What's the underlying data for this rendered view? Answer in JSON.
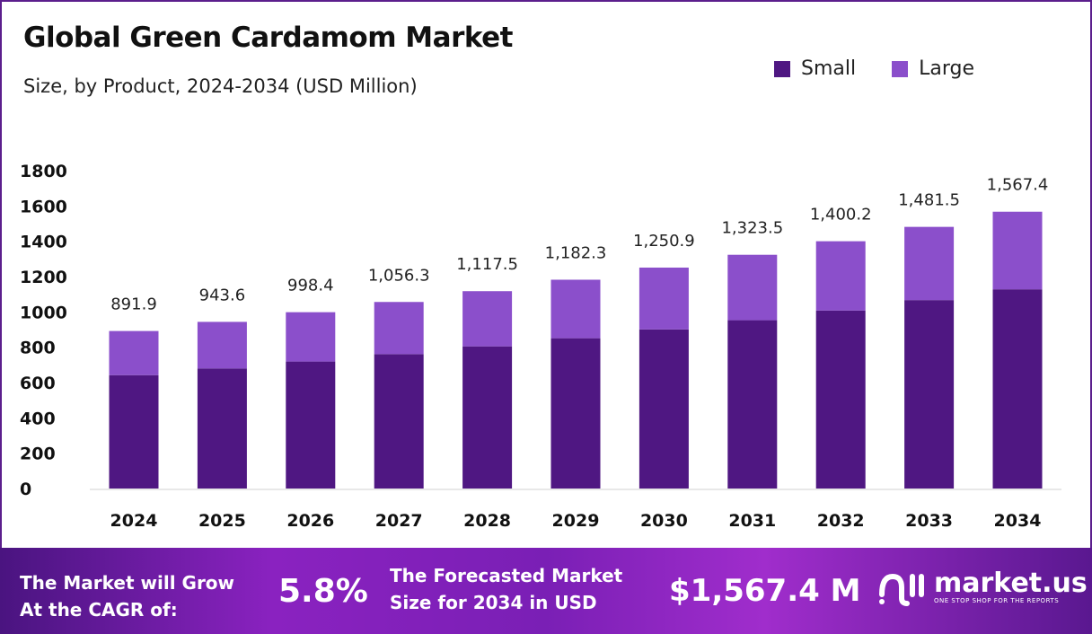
{
  "chart_data": {
    "type": "bar",
    "stacked": true,
    "title": "Global Green Cardamom Market",
    "subtitle": "Size, by Product, 2024-2034 (USD Million)",
    "categories": [
      "2024",
      "2025",
      "2026",
      "2027",
      "2028",
      "2029",
      "2030",
      "2031",
      "2032",
      "2033",
      "2034"
    ],
    "series": [
      {
        "name": "Small",
        "color": "#4f1782",
        "values": [
          642,
          680,
          719,
          761,
          805,
          851,
          901,
          953,
          1008,
          1067,
          1128
        ]
      },
      {
        "name": "Large",
        "color": "#8b4fcb",
        "values": [
          249.9,
          263.6,
          279.4,
          295.3,
          312.5,
          331.3,
          349.9,
          370.5,
          392.2,
          414.5,
          439.4
        ]
      }
    ],
    "totals_labels": [
      "891.9",
      "943.6",
      "998.4",
      "1,056.3",
      "1,117.5",
      "1,182.3",
      "1,250.9",
      "1,323.5",
      "1,400.2",
      "1,481.5",
      "1,567.4"
    ],
    "ylim": [
      0,
      1800
    ],
    "yticks": [
      "0",
      "200",
      "400",
      "600",
      "800",
      "1000",
      "1200",
      "1400",
      "1600",
      "1800"
    ],
    "grid": false,
    "legend_position": "top-right"
  },
  "footer": {
    "cagr_label_line1": "The Market will Grow",
    "cagr_label_line2": "At the CAGR of:",
    "cagr_value": "5.8%",
    "forecast_label_line1": "The Forecasted Market",
    "forecast_label_line2": "Size for 2034 in USD",
    "forecast_value": "$1,567.4 M",
    "logo_text": "market.us",
    "logo_tagline": "ONE STOP SHOP FOR THE REPORTS"
  }
}
